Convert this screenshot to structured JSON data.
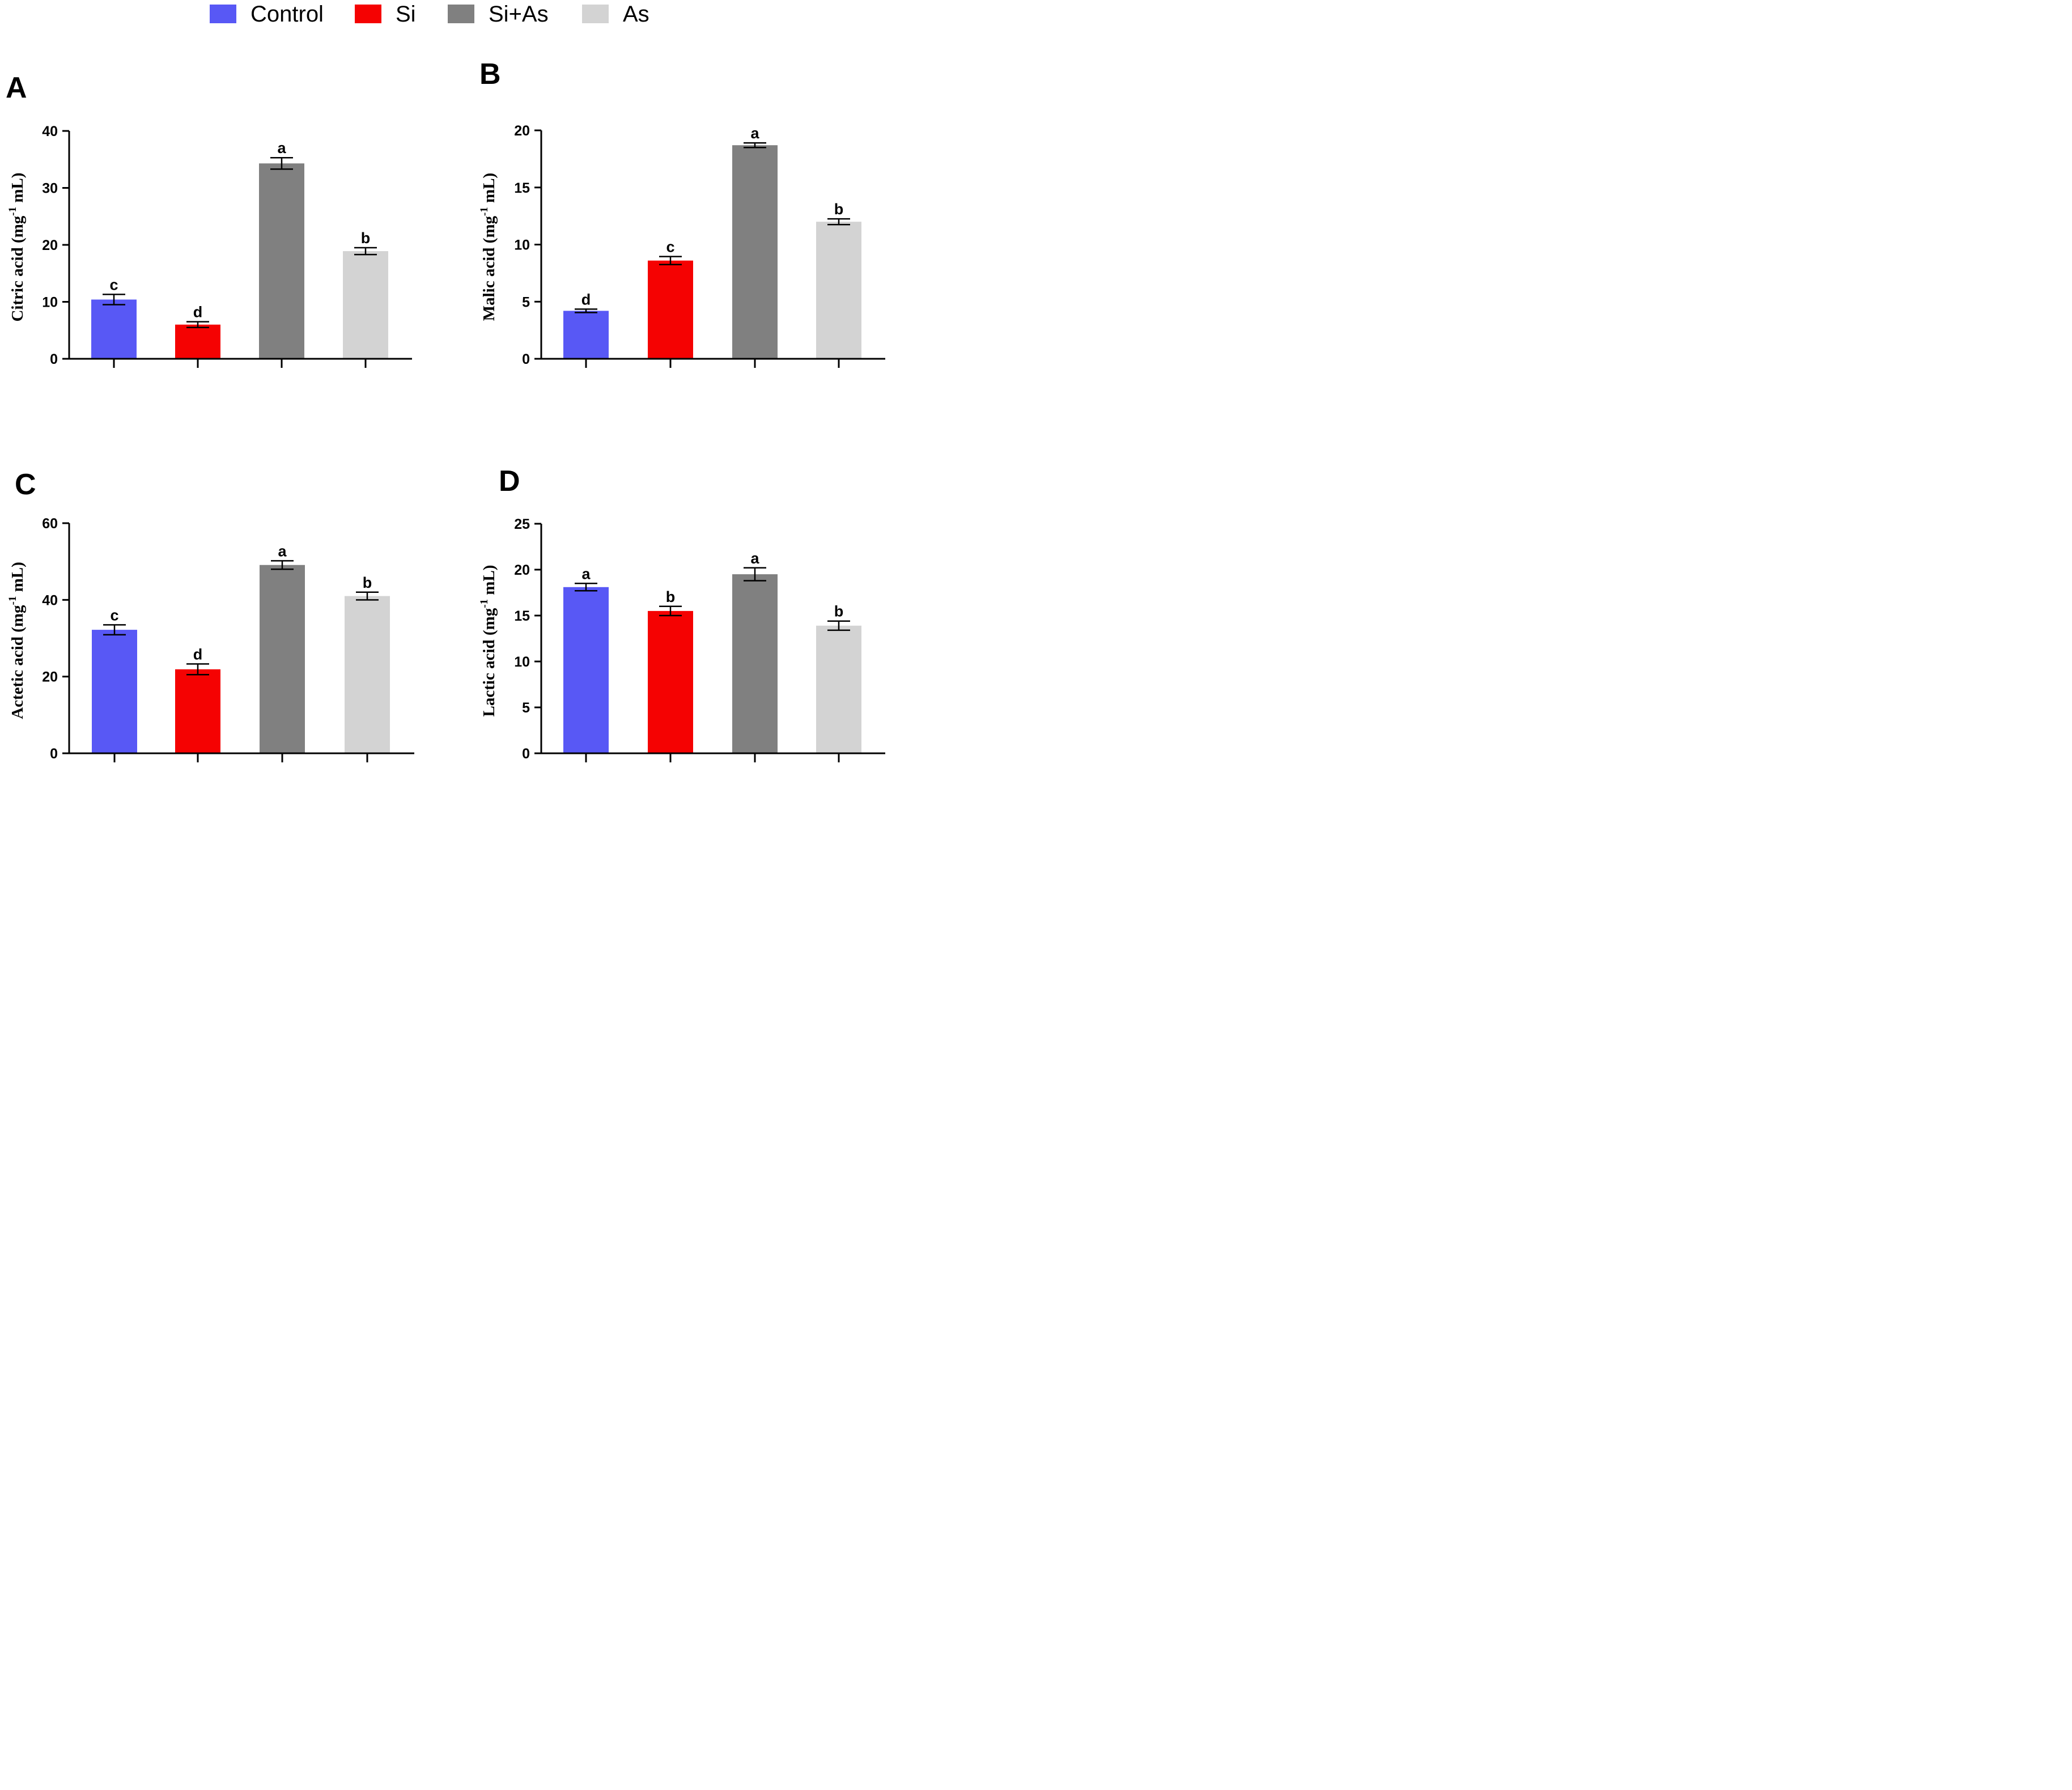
{
  "legend": [
    {
      "label": "Control",
      "color": "#5858f5"
    },
    {
      "label": "Si",
      "color": "#f50202"
    },
    {
      "label": "Si+As",
      "color": "#808080"
    },
    {
      "label": "As",
      "color": "#d3d3d3"
    }
  ],
  "chart_data": [
    {
      "panel": "A",
      "type": "bar",
      "categories": [
        "Control",
        "Si",
        "Si+As",
        "As"
      ],
      "values": [
        10.4,
        6.0,
        34.3,
        18.9
      ],
      "errors": [
        0.9,
        0.5,
        1.0,
        0.6
      ],
      "letters": [
        "c",
        "d",
        "a",
        "b"
      ],
      "ylabel_main": "Citric acid (mg",
      "ylabel_sup": "-1",
      "ylabel_end": " mL)",
      "ylim": [
        0,
        40
      ],
      "yticks": [
        0,
        10,
        20,
        30,
        40
      ],
      "ytick_labels": [
        "0",
        "10",
        "20",
        "30",
        "40"
      ]
    },
    {
      "panel": "B",
      "type": "bar",
      "categories": [
        "Control",
        "Si",
        "Si+As",
        "As"
      ],
      "values": [
        4.2,
        8.6,
        18.7,
        12.0
      ],
      "errors": [
        0.15,
        0.35,
        0.2,
        0.25
      ],
      "letters": [
        "d",
        "c",
        "a",
        "b"
      ],
      "ylabel_main": "Malic acid (mg",
      "ylabel_sup": "-1",
      "ylabel_end": " mL)",
      "ylim": [
        0,
        20
      ],
      "yticks": [
        0,
        5,
        10,
        15,
        20
      ],
      "ytick_labels": [
        "0",
        "5",
        "10",
        "15",
        "20"
      ]
    },
    {
      "panel": "C",
      "type": "bar",
      "categories": [
        "Control",
        "Si",
        "Si+As",
        "As"
      ],
      "values": [
        32.2,
        21.9,
        49.1,
        41.0
      ],
      "errors": [
        1.3,
        1.4,
        1.1,
        1.0
      ],
      "letters": [
        "c",
        "d",
        "a",
        "b"
      ],
      "ylabel_main": "Actetic acid (mg",
      "ylabel_sup": "-1",
      "ylabel_end": " mL)",
      "ylim": [
        0,
        60
      ],
      "yticks": [
        0,
        20,
        40,
        60
      ],
      "ytick_labels": [
        "0",
        "20",
        "40",
        "60"
      ]
    },
    {
      "panel": "D",
      "type": "bar",
      "categories": [
        "Control",
        "Si",
        "Si+As",
        "As"
      ],
      "values": [
        18.1,
        15.5,
        19.5,
        13.9
      ],
      "errors": [
        0.4,
        0.5,
        0.7,
        0.5
      ],
      "letters": [
        "a",
        "b",
        "a",
        "b"
      ],
      "ylabel_main": "Lactic acid (mg",
      "ylabel_sup": "-1",
      "ylabel_end": " mL)",
      "ylim": [
        0,
        25
      ],
      "yticks": [
        0,
        5,
        10,
        15,
        20,
        25
      ],
      "ytick_labels": [
        "0",
        "5",
        "10",
        "15",
        "20",
        "25"
      ]
    }
  ]
}
